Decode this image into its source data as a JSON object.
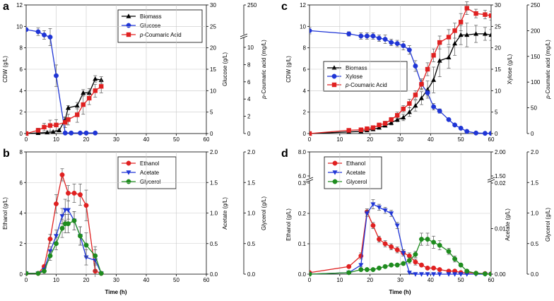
{
  "colors": {
    "black": "#000000",
    "blue": "#1f35d6",
    "red": "#e02020",
    "green": "#1e8c1e",
    "grid": "#c8c8c8"
  },
  "chart_data": [
    {
      "id": "a",
      "type": "line",
      "x_ticks": [
        "0",
        "10",
        "20",
        "30",
        "40",
        "50",
        "60"
      ],
      "xlim": [
        0,
        60
      ],
      "ylabel_left": "CDW (g/L)",
      "ylabel_mid": "Glucose (g/L)",
      "ylabel_right_title": "p-Coumaric acid (mg/L)",
      "ylabel_right_parts": [
        "p",
        "-Coumaric acid (mg/L)"
      ],
      "ylim": [
        0,
        12
      ],
      "left_ticks": [
        "0",
        "2",
        "4",
        "6",
        "8",
        "10",
        "12"
      ],
      "mid_ticks": [
        "0",
        "5",
        "10",
        "15",
        "20",
        "25",
        "30"
      ],
      "right_ticks_low": [
        "0",
        "2",
        "4",
        "6",
        "8",
        "10"
      ],
      "right_ticks_high": [
        "250"
      ],
      "legend": [
        {
          "name": "Biomass",
          "parts": [
            "",
            "Biomass"
          ]
        },
        {
          "name": "Glucose",
          "parts": [
            "",
            "Glucose"
          ]
        },
        {
          "name": "p-Coumaric Acid",
          "parts": [
            "p",
            "-Coumaric Acid"
          ]
        }
      ],
      "series": [
        {
          "name": "Biomass",
          "color_key": "black",
          "marker": "triangle",
          "x": [
            0,
            4,
            7,
            9,
            11,
            13,
            14,
            17,
            19,
            21,
            23,
            25
          ],
          "y": [
            0,
            0.05,
            0.1,
            0.15,
            0.3,
            1.3,
            2.4,
            2.6,
            3.8,
            3.8,
            5.1,
            5.0
          ],
          "err": [
            0,
            0,
            0,
            0,
            0.1,
            0.2,
            0.2,
            0.3,
            0.3,
            0.4,
            0.3,
            0.3
          ]
        },
        {
          "name": "Glucose",
          "color_key": "blue",
          "marker": "circle",
          "x": [
            0,
            4,
            6,
            8,
            10,
            13,
            15,
            18,
            20,
            23
          ],
          "y": [
            9.7,
            9.5,
            9.2,
            9.0,
            5.4,
            0.05,
            0.05,
            0.05,
            0.05,
            0.05
          ],
          "err": [
            0,
            0.35,
            0.4,
            0.8,
            1.0,
            0,
            0,
            0,
            0,
            0
          ]
        },
        {
          "name": "p-Coumaric Acid",
          "color_key": "red",
          "marker": "square",
          "x": [
            0,
            4,
            6,
            8,
            10,
            13,
            14,
            17,
            19,
            21,
            23,
            25
          ],
          "y": [
            0,
            0.3,
            0.6,
            0.75,
            0.8,
            1.05,
            1.3,
            1.75,
            2.7,
            3.3,
            4.0,
            4.4
          ],
          "err": [
            0,
            0.2,
            0.35,
            0.5,
            0.5,
            0.5,
            0.5,
            0.7,
            0.9,
            0.6,
            0.6,
            0.6
          ]
        }
      ]
    },
    {
      "id": "b",
      "type": "line",
      "x_ticks": [
        "0",
        "10",
        "20",
        "30",
        "40",
        "50",
        "60"
      ],
      "xlim": [
        0,
        60
      ],
      "xlabel": "Time (h)",
      "ylabel_left": "Ethanol (g/L)",
      "ylabel_mid": "Acetate (g/L)",
      "ylabel_right_title": "Glycerol (g/L)",
      "ylim": [
        0,
        8
      ],
      "left_ticks": [
        "0",
        "2",
        "4",
        "6",
        "8"
      ],
      "mid_ticks": [
        "0.0",
        "0.5",
        "1.0",
        "1.5",
        "2.0"
      ],
      "right_ticks": [
        "0.0",
        "0.5",
        "1.0",
        "1.5",
        "2.0"
      ],
      "legend": [
        {
          "name": "Ethanol",
          "parts": [
            "",
            "Ethanol"
          ]
        },
        {
          "name": "Acetate",
          "parts": [
            "",
            "Acetate"
          ]
        },
        {
          "name": "Glycerol",
          "parts": [
            "",
            "Glycerol"
          ]
        }
      ],
      "series": [
        {
          "name": "Ethanol",
          "color_key": "red",
          "marker": "circle",
          "x": [
            0,
            4,
            6,
            8,
            10,
            12,
            14,
            16,
            18,
            20,
            23,
            25
          ],
          "y": [
            0.05,
            0.05,
            0.5,
            2.3,
            4.6,
            6.5,
            5.3,
            5.3,
            5.2,
            4.5,
            0.2,
            0.05
          ],
          "err": [
            0,
            0,
            0.1,
            0.3,
            0.6,
            0.4,
            0.5,
            0.6,
            0.7,
            1.0,
            0.5,
            0
          ]
        },
        {
          "name": "Acetate",
          "color_key": "blue",
          "marker": "triangle_down",
          "x": [
            0,
            4,
            6,
            8,
            10,
            12,
            13,
            14,
            16,
            18,
            20,
            23,
            25
          ],
          "y": [
            0.05,
            0.05,
            0.3,
            1.5,
            2.5,
            3.8,
            4.2,
            4.2,
            3.5,
            2.5,
            1.1,
            0.9,
            0.05
          ],
          "err": [
            0,
            0,
            0.1,
            0.3,
            0.4,
            0.5,
            0.7,
            0.6,
            0.6,
            0.6,
            0.5,
            0.7,
            0
          ]
        },
        {
          "name": "Glycerol",
          "color_key": "green",
          "marker": "circle",
          "x": [
            0,
            4,
            6,
            8,
            10,
            12,
            13,
            14,
            16,
            18,
            20,
            23,
            25
          ],
          "y": [
            0.05,
            0.05,
            0.2,
            1.2,
            2.0,
            3.0,
            3.3,
            3.3,
            3.5,
            2.5,
            1.9,
            1.2,
            0.05
          ],
          "err": [
            0,
            0,
            0.1,
            0.3,
            0.4,
            0.6,
            0.6,
            0.6,
            0.6,
            0.6,
            0.8,
            0.6,
            0
          ]
        }
      ]
    },
    {
      "id": "c",
      "type": "line",
      "x_ticks": [
        "0",
        "10",
        "20",
        "30",
        "40",
        "50",
        "60"
      ],
      "xlim": [
        0,
        60
      ],
      "ylabel_left": "CDW (g/L)",
      "ylabel_mid": "Xylose (g/L)",
      "ylabel_right_title": "p-Coumaric acid (mg/L)",
      "ylabel_right_parts": [
        "p",
        "-Coumaric acid (mg/L)"
      ],
      "ylim": [
        0,
        12
      ],
      "left_ticks": [
        "0",
        "2",
        "4",
        "6",
        "8",
        "10",
        "12"
      ],
      "mid_ticks": [
        "0",
        "5",
        "10",
        "15",
        "20",
        "25",
        "30"
      ],
      "right_ticks": [
        "0",
        "50",
        "100",
        "150",
        "200",
        "250"
      ],
      "legend": [
        {
          "name": "Biomass",
          "parts": [
            "",
            "Biomass"
          ]
        },
        {
          "name": "Xylose",
          "parts": [
            "",
            "Xylose"
          ]
        },
        {
          "name": "p-Coumaric Acid",
          "parts": [
            "p",
            "-Coumaric Acid"
          ]
        }
      ],
      "series": [
        {
          "name": "Biomass",
          "color_key": "black",
          "marker": "triangle",
          "x": [
            0,
            13,
            17,
            19,
            21,
            23,
            25,
            27,
            29,
            31,
            33,
            35,
            37,
            39,
            41,
            43,
            46,
            48,
            50,
            52,
            55,
            58,
            60
          ],
          "y": [
            0,
            0.15,
            0.2,
            0.3,
            0.4,
            0.55,
            0.75,
            1.0,
            1.3,
            1.5,
            2.0,
            2.6,
            3.3,
            4.1,
            5.0,
            6.8,
            7.1,
            8.4,
            9.2,
            9.2,
            9.3,
            9.3,
            9.2
          ],
          "err": [
            0,
            0,
            0,
            0.05,
            0.05,
            0.1,
            0.1,
            0.2,
            0.2,
            0.3,
            0.4,
            0.5,
            0.6,
            0.8,
            1.2,
            1.5,
            1.0,
            1.1,
            0.9,
            1.1,
            0.8,
            0.6,
            0.5
          ]
        },
        {
          "name": "Xylose",
          "color_key": "blue",
          "marker": "circle",
          "x": [
            0,
            13,
            17,
            19,
            21,
            23,
            25,
            27,
            29,
            31,
            33,
            35,
            37,
            39,
            41,
            43,
            46,
            48,
            50,
            52,
            55,
            58,
            60
          ],
          "y": [
            9.6,
            9.3,
            9.1,
            9.1,
            9.1,
            8.9,
            8.8,
            8.5,
            8.4,
            8.2,
            7.8,
            6.3,
            4.6,
            3.8,
            2.5,
            2.1,
            1.3,
            0.8,
            0.5,
            0.2,
            0.05,
            0.02,
            0.02
          ],
          "err": [
            0.3,
            0.2,
            0.3,
            0.3,
            0.3,
            0.3,
            0.4,
            0.3,
            0.3,
            0.4,
            0.4,
            0.5,
            0.4,
            0.3,
            0.3,
            0.2,
            0,
            0,
            0,
            0,
            0,
            0,
            0
          ]
        },
        {
          "name": "p-Coumaric Acid",
          "color_key": "red",
          "marker": "square",
          "x": [
            0,
            13,
            17,
            19,
            21,
            23,
            25,
            27,
            29,
            31,
            33,
            35,
            37,
            39,
            41,
            43,
            46,
            48,
            50,
            52,
            55,
            58,
            60
          ],
          "y": [
            0,
            0.3,
            0.35,
            0.45,
            0.55,
            0.8,
            0.95,
            1.3,
            1.7,
            2.3,
            2.8,
            3.6,
            4.6,
            6.0,
            7.3,
            8.5,
            9.0,
            9.6,
            10.4,
            11.7,
            11.2,
            11.1,
            11.0
          ],
          "err": [
            0,
            0.1,
            0.1,
            0.1,
            0.1,
            0.15,
            0.2,
            0.2,
            0.3,
            0.3,
            0.4,
            0.4,
            0.5,
            0.6,
            0.6,
            0.6,
            0.7,
            0.7,
            0.8,
            0.6,
            0.4,
            0.4,
            0.4
          ]
        }
      ]
    },
    {
      "id": "d",
      "type": "line",
      "x_ticks": [
        "0",
        "10",
        "20",
        "30",
        "40",
        "50",
        "60"
      ],
      "xlim": [
        0,
        60
      ],
      "xlabel": "Time (h)",
      "ylabel_left": "Ethanol (g/L)",
      "ylabel_mid": "Acetate (g/L)",
      "ylabel_right_title": "Glycerol (g/L)",
      "ylim": [
        0,
        0.3
      ],
      "left_ticks": [
        "0.0",
        "0.1",
        "0.2"
      ],
      "left_ticks_high": [
        "6.0",
        "8.0"
      ],
      "left_break_label": "0.3",
      "mid_ticks": [
        "0.00",
        "0.01"
      ],
      "mid_ticks_high": [
        "1.50",
        "2.00"
      ],
      "mid_break_label": "0.02",
      "right_ticks": [
        "0.0",
        "0.5",
        "1.0",
        "1.5",
        "2.0"
      ],
      "legend": [
        {
          "name": "Ethanol",
          "parts": [
            "",
            "Ethanol"
          ]
        },
        {
          "name": "Acetate",
          "parts": [
            "",
            "Acetate"
          ]
        },
        {
          "name": "Glycerol",
          "parts": [
            "",
            "Glycerol"
          ]
        }
      ],
      "series": [
        {
          "name": "Ethanol",
          "color_key": "red",
          "marker": "circle",
          "x": [
            0,
            13,
            17,
            19,
            21,
            23,
            25,
            27,
            29,
            31,
            33,
            35,
            37,
            39,
            41,
            43,
            46,
            48,
            50,
            52,
            55,
            58,
            60
          ],
          "y": [
            0.005,
            0.025,
            0.06,
            0.205,
            0.16,
            0.115,
            0.1,
            0.09,
            0.08,
            0.07,
            0.06,
            0.04,
            0.03,
            0.02,
            0.02,
            0.015,
            0.01,
            0.01,
            0.005,
            0.005,
            0.003,
            0.002,
            0.001
          ],
          "err": [
            0,
            0.005,
            0.01,
            0.01,
            0.01,
            0.01,
            0.01,
            0.01,
            0.01,
            0.01,
            0.01,
            0.01,
            0.005,
            0.005,
            0.005,
            0,
            0,
            0,
            0,
            0,
            0,
            0,
            0
          ]
        },
        {
          "name": "Acetate",
          "color_key": "blue",
          "marker": "triangle_down",
          "x": [
            0,
            13,
            17,
            19,
            21,
            23,
            25,
            27,
            29,
            31,
            33,
            35,
            37,
            39,
            41,
            43,
            46,
            48,
            50,
            52,
            55,
            58,
            60
          ],
          "y": [
            0.0,
            0.005,
            0.03,
            0.2,
            0.23,
            0.22,
            0.21,
            0.2,
            0.16,
            0.07,
            0.005,
            0,
            0,
            0,
            0,
            0,
            0,
            0,
            0,
            0,
            0,
            0,
            0
          ],
          "err": [
            0,
            0,
            0.005,
            0.01,
            0.015,
            0.01,
            0.01,
            0.01,
            0.01,
            0.01,
            0,
            0,
            0,
            0,
            0,
            0,
            0,
            0,
            0,
            0,
            0,
            0,
            0
          ]
        },
        {
          "name": "Glycerol",
          "color_key": "green",
          "marker": "circle",
          "x": [
            0,
            13,
            17,
            19,
            21,
            23,
            25,
            27,
            29,
            31,
            33,
            35,
            37,
            39,
            41,
            43,
            46,
            48,
            50,
            52,
            55,
            58,
            60
          ],
          "y": [
            0,
            0.005,
            0.015,
            0.015,
            0.015,
            0.02,
            0.025,
            0.03,
            0.03,
            0.035,
            0.045,
            0.065,
            0.115,
            0.115,
            0.105,
            0.095,
            0.075,
            0.05,
            0.03,
            0.01,
            0.003,
            0.001,
            0
          ],
          "err": [
            0,
            0,
            0,
            0,
            0,
            0,
            0.005,
            0.005,
            0.005,
            0.005,
            0.01,
            0.01,
            0.02,
            0.02,
            0.02,
            0.015,
            0.01,
            0.01,
            0.005,
            0,
            0,
            0,
            0
          ]
        }
      ]
    }
  ]
}
